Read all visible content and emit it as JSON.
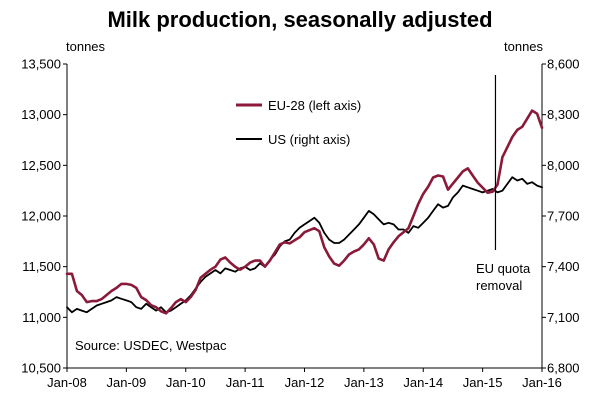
{
  "chart_data": {
    "type": "line",
    "title": "Milk production, seasonally adjusted",
    "left_axis": {
      "unit_label": "tonnes",
      "ylim": [
        10500,
        13500
      ],
      "ticks": [
        "10,500",
        "11,000",
        "11,500",
        "12,000",
        "12,500",
        "13,000",
        "13,500"
      ]
    },
    "right_axis": {
      "unit_label": "tonnes",
      "ylim": [
        6800,
        8600
      ],
      "ticks": [
        "6,800",
        "7,100",
        "7,400",
        "7,700",
        "8,000",
        "8,300",
        "8,600"
      ]
    },
    "x_axis": {
      "ticks": [
        "Jan-08",
        "Jan-09",
        "Jan-10",
        "Jan-11",
        "Jan-12",
        "Jan-13",
        "Jan-14",
        "Jan-15",
        "Jan-16"
      ]
    },
    "legend": {
      "placement": "top-center"
    },
    "series": [
      {
        "name": "EU-28 (left axis)",
        "axis": "left",
        "color": "#8b1a3a",
        "points": [
          [
            "2008-01",
            11430
          ],
          [
            "2008-02",
            11430
          ],
          [
            "2008-03",
            11260
          ],
          [
            "2008-04",
            11220
          ],
          [
            "2008-05",
            11150
          ],
          [
            "2008-06",
            11160
          ],
          [
            "2008-07",
            11160
          ],
          [
            "2008-08",
            11180
          ],
          [
            "2008-09",
            11220
          ],
          [
            "2008-10",
            11260
          ],
          [
            "2008-11",
            11290
          ],
          [
            "2008-12",
            11330
          ],
          [
            "2009-01",
            11330
          ],
          [
            "2009-02",
            11320
          ],
          [
            "2009-03",
            11290
          ],
          [
            "2009-04",
            11200
          ],
          [
            "2009-05",
            11170
          ],
          [
            "2009-06",
            11120
          ],
          [
            "2009-07",
            11100
          ],
          [
            "2009-08",
            11060
          ],
          [
            "2009-09",
            11040
          ],
          [
            "2009-10",
            11090
          ],
          [
            "2009-11",
            11150
          ],
          [
            "2009-12",
            11180
          ],
          [
            "2010-01",
            11150
          ],
          [
            "2010-02",
            11200
          ],
          [
            "2010-03",
            11270
          ],
          [
            "2010-04",
            11390
          ],
          [
            "2010-05",
            11430
          ],
          [
            "2010-06",
            11470
          ],
          [
            "2010-07",
            11500
          ],
          [
            "2010-08",
            11570
          ],
          [
            "2010-09",
            11590
          ],
          [
            "2010-10",
            11540
          ],
          [
            "2010-11",
            11500
          ],
          [
            "2010-12",
            11470
          ],
          [
            "2011-01",
            11500
          ],
          [
            "2011-02",
            11540
          ],
          [
            "2011-03",
            11560
          ],
          [
            "2011-04",
            11560
          ],
          [
            "2011-05",
            11500
          ],
          [
            "2011-06",
            11560
          ],
          [
            "2011-07",
            11640
          ],
          [
            "2011-08",
            11720
          ],
          [
            "2011-09",
            11740
          ],
          [
            "2011-10",
            11730
          ],
          [
            "2011-11",
            11760
          ],
          [
            "2011-12",
            11790
          ],
          [
            "2012-01",
            11840
          ],
          [
            "2012-02",
            11860
          ],
          [
            "2012-03",
            11880
          ],
          [
            "2012-04",
            11850
          ],
          [
            "2012-05",
            11690
          ],
          [
            "2012-06",
            11600
          ],
          [
            "2012-07",
            11530
          ],
          [
            "2012-08",
            11510
          ],
          [
            "2012-09",
            11560
          ],
          [
            "2012-10",
            11620
          ],
          [
            "2012-11",
            11650
          ],
          [
            "2012-12",
            11670
          ],
          [
            "2013-01",
            11720
          ],
          [
            "2013-02",
            11780
          ],
          [
            "2013-03",
            11720
          ],
          [
            "2013-04",
            11580
          ],
          [
            "2013-05",
            11560
          ],
          [
            "2013-06",
            11670
          ],
          [
            "2013-07",
            11740
          ],
          [
            "2013-08",
            11800
          ],
          [
            "2013-09",
            11840
          ],
          [
            "2013-10",
            11880
          ],
          [
            "2013-11",
            12000
          ],
          [
            "2013-12",
            12120
          ],
          [
            "2014-01",
            12220
          ],
          [
            "2014-02",
            12290
          ],
          [
            "2014-03",
            12380
          ],
          [
            "2014-04",
            12400
          ],
          [
            "2014-05",
            12390
          ],
          [
            "2014-06",
            12260
          ],
          [
            "2014-07",
            12320
          ],
          [
            "2014-08",
            12380
          ],
          [
            "2014-09",
            12440
          ],
          [
            "2014-10",
            12470
          ],
          [
            "2014-11",
            12400
          ],
          [
            "2014-12",
            12330
          ],
          [
            "2015-01",
            12280
          ],
          [
            "2015-02",
            12230
          ],
          [
            "2015-03",
            12240
          ],
          [
            "2015-04",
            12310
          ],
          [
            "2015-05",
            12580
          ],
          [
            "2015-06",
            12680
          ],
          [
            "2015-07",
            12780
          ],
          [
            "2015-08",
            12850
          ],
          [
            "2015-09",
            12880
          ],
          [
            "2015-10",
            12960
          ],
          [
            "2015-11",
            13040
          ],
          [
            "2015-12",
            13010
          ],
          [
            "2016-01",
            12870
          ]
        ]
      },
      {
        "name": "US (right axis)",
        "axis": "right",
        "color": "#000000",
        "points": [
          [
            "2008-01",
            7160
          ],
          [
            "2008-02",
            7130
          ],
          [
            "2008-03",
            7150
          ],
          [
            "2008-04",
            7140
          ],
          [
            "2008-05",
            7130
          ],
          [
            "2008-06",
            7150
          ],
          [
            "2008-07",
            7170
          ],
          [
            "2008-08",
            7180
          ],
          [
            "2008-09",
            7190
          ],
          [
            "2008-10",
            7200
          ],
          [
            "2008-11",
            7220
          ],
          [
            "2008-12",
            7210
          ],
          [
            "2009-01",
            7200
          ],
          [
            "2009-02",
            7190
          ],
          [
            "2009-03",
            7160
          ],
          [
            "2009-04",
            7150
          ],
          [
            "2009-05",
            7180
          ],
          [
            "2009-06",
            7160
          ],
          [
            "2009-07",
            7140
          ],
          [
            "2009-08",
            7160
          ],
          [
            "2009-09",
            7130
          ],
          [
            "2009-10",
            7140
          ],
          [
            "2009-11",
            7160
          ],
          [
            "2009-12",
            7180
          ],
          [
            "2010-01",
            7200
          ],
          [
            "2010-02",
            7230
          ],
          [
            "2010-03",
            7270
          ],
          [
            "2010-04",
            7310
          ],
          [
            "2010-05",
            7340
          ],
          [
            "2010-06",
            7360
          ],
          [
            "2010-07",
            7380
          ],
          [
            "2010-08",
            7360
          ],
          [
            "2010-09",
            7390
          ],
          [
            "2010-10",
            7380
          ],
          [
            "2010-11",
            7370
          ],
          [
            "2010-12",
            7390
          ],
          [
            "2011-01",
            7400
          ],
          [
            "2011-02",
            7380
          ],
          [
            "2011-03",
            7390
          ],
          [
            "2011-04",
            7420
          ],
          [
            "2011-05",
            7400
          ],
          [
            "2011-06",
            7440
          ],
          [
            "2011-07",
            7470
          ],
          [
            "2011-08",
            7520
          ],
          [
            "2011-09",
            7550
          ],
          [
            "2011-10",
            7560
          ],
          [
            "2011-11",
            7600
          ],
          [
            "2011-12",
            7630
          ],
          [
            "2012-01",
            7650
          ],
          [
            "2012-02",
            7670
          ],
          [
            "2012-03",
            7690
          ],
          [
            "2012-04",
            7660
          ],
          [
            "2012-05",
            7600
          ],
          [
            "2012-06",
            7560
          ],
          [
            "2012-07",
            7540
          ],
          [
            "2012-08",
            7540
          ],
          [
            "2012-09",
            7560
          ],
          [
            "2012-10",
            7590
          ],
          [
            "2012-11",
            7620
          ],
          [
            "2012-12",
            7650
          ],
          [
            "2013-01",
            7690
          ],
          [
            "2013-02",
            7730
          ],
          [
            "2013-03",
            7710
          ],
          [
            "2013-04",
            7680
          ],
          [
            "2013-05",
            7650
          ],
          [
            "2013-06",
            7660
          ],
          [
            "2013-07",
            7650
          ],
          [
            "2013-08",
            7620
          ],
          [
            "2013-09",
            7620
          ],
          [
            "2013-10",
            7600
          ],
          [
            "2013-11",
            7640
          ],
          [
            "2013-12",
            7630
          ],
          [
            "2014-01",
            7660
          ],
          [
            "2014-02",
            7690
          ],
          [
            "2014-03",
            7730
          ],
          [
            "2014-04",
            7770
          ],
          [
            "2014-05",
            7750
          ],
          [
            "2014-06",
            7760
          ],
          [
            "2014-07",
            7810
          ],
          [
            "2014-08",
            7840
          ],
          [
            "2014-09",
            7880
          ],
          [
            "2014-10",
            7870
          ],
          [
            "2014-11",
            7860
          ],
          [
            "2014-12",
            7850
          ],
          [
            "2015-01",
            7840
          ],
          [
            "2015-02",
            7850
          ],
          [
            "2015-03",
            7860
          ],
          [
            "2015-04",
            7840
          ],
          [
            "2015-05",
            7850
          ],
          [
            "2015-06",
            7890
          ],
          [
            "2015-07",
            7930
          ],
          [
            "2015-08",
            7910
          ],
          [
            "2015-09",
            7920
          ],
          [
            "2015-10",
            7890
          ],
          [
            "2015-11",
            7900
          ],
          [
            "2015-12",
            7880
          ],
          [
            "2016-01",
            7870
          ]
        ]
      }
    ],
    "annotations": [
      {
        "text_lines": [
          "EU quota",
          "removal"
        ],
        "x": "2015-04"
      },
      {
        "text": "Source: USDEC, Westpac"
      }
    ]
  }
}
